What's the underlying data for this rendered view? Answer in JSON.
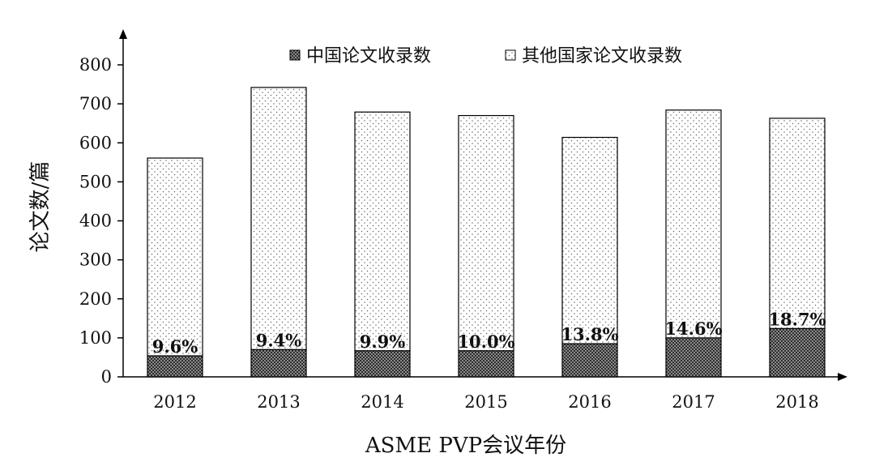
{
  "chart_data": {
    "type": "bar",
    "stacked": true,
    "title": "",
    "xlabel": "ASME PVP会议年份",
    "ylabel": "论文数/篇",
    "categories": [
      "2012",
      "2013",
      "2014",
      "2015",
      "2016",
      "2017",
      "2018"
    ],
    "series": [
      {
        "name": "中国论文收录数",
        "values": [
          54,
          70,
          67,
          67,
          85,
          100,
          124
        ],
        "pattern": "dense-checker",
        "color": "#555555"
      },
      {
        "name": "其他国家论文收录数",
        "values": [
          507,
          672,
          612,
          603,
          529,
          584,
          539
        ],
        "pattern": "sparse-dots",
        "color": "#888888"
      }
    ],
    "data_labels": [
      "9.6%",
      "9.4%",
      "9.9%",
      "10.0%",
      "13.8%",
      "14.6%",
      "18.7%"
    ],
    "ylim": [
      0,
      800
    ],
    "yticks": [
      0,
      100,
      200,
      300,
      400,
      500,
      600,
      700,
      800
    ],
    "grid": false,
    "legend_position": "top"
  }
}
